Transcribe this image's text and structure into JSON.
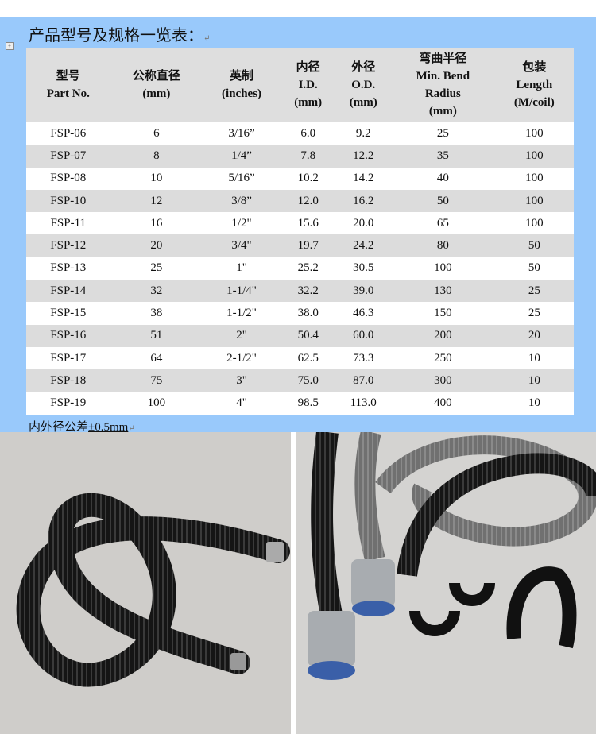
{
  "title": "产品型号及规格一览表：",
  "table": {
    "headers": [
      [
        "型号",
        "Part No."
      ],
      [
        "公称直径",
        "(mm)"
      ],
      [
        "英制",
        "(inches)"
      ],
      [
        "内径",
        "I.D.",
        "(mm)"
      ],
      [
        "外径",
        "O.D.",
        "(mm)"
      ],
      [
        "弯曲半径",
        "Min. Bend",
        "Radius",
        "(mm)"
      ],
      [
        "包装",
        "Length",
        "(M/coil)"
      ]
    ],
    "rows": [
      [
        "FSP-06",
        "6",
        "3/16”",
        "6.0",
        "9.2",
        "25",
        "100"
      ],
      [
        "FSP-07",
        "8",
        "1/4”",
        "7.8",
        "12.2",
        "35",
        "100"
      ],
      [
        "FSP-08",
        "10",
        "5/16”",
        "10.2",
        "14.2",
        "40",
        "100"
      ],
      [
        "FSP-10",
        "12",
        "3/8”",
        "12.0",
        "16.2",
        "50",
        "100"
      ],
      [
        "FSP-11",
        "16",
        "1/2\"",
        "15.6",
        "20.0",
        "65",
        "100"
      ],
      [
        "FSP-12",
        "20",
        "3/4\"",
        "19.7",
        "24.2",
        "80",
        "50"
      ],
      [
        "FSP-13",
        "25",
        "1\"",
        "25.2",
        "30.5",
        "100",
        "50"
      ],
      [
        "FSP-14",
        "32",
        "1-1/4\"",
        "32.2",
        "39.0",
        "130",
        "25"
      ],
      [
        "FSP-15",
        "38",
        "1-1/2\"",
        "38.0",
        "46.3",
        "150",
        "25"
      ],
      [
        "FSP-16",
        "51",
        "2\"",
        "50.4",
        "60.0",
        "200",
        "20"
      ],
      [
        "FSP-17",
        "64",
        "2-1/2\"",
        "62.5",
        "73.3",
        "250",
        "10"
      ],
      [
        "FSP-18",
        "75",
        "3\"",
        "75.0",
        "87.0",
        "300",
        "10"
      ],
      [
        "FSP-19",
        "100",
        "4\"",
        "98.5",
        "113.0",
        "400",
        "10"
      ]
    ]
  },
  "note": {
    "prefix": "内外径公差",
    "value": "±0.5mm"
  },
  "colors": {
    "page_bg": "#99c9fb",
    "header_bg": "#dedede",
    "row_alt": "#dcdcdc"
  }
}
